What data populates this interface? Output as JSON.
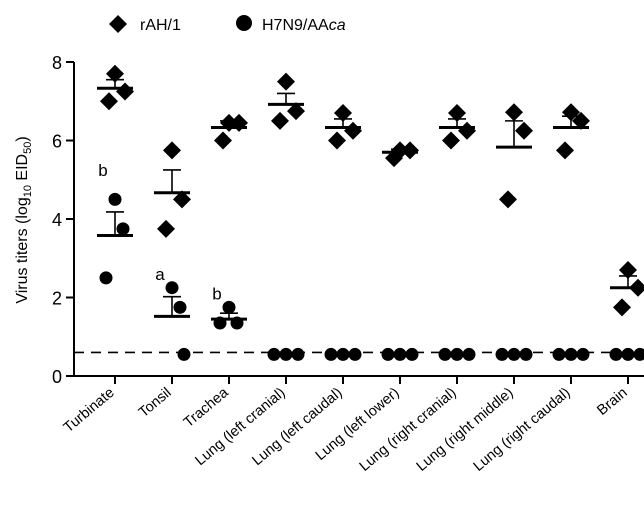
{
  "chart_data": {
    "type": "scatter",
    "ylabel": "Virus titers (log",
    "ylabel_sub": "10",
    "ylabel_tail": " EID",
    "ylabel_sub2": "50",
    "ylabel_end": ")",
    "ylim": [
      0,
      8
    ],
    "yticks": [
      "0",
      "2",
      "4",
      "6",
      "8"
    ],
    "detection_limit": 0.6,
    "categories": [
      "Turbinate",
      "Tonsil",
      "Trachea",
      "Lung (left cranial)",
      "Lung (left caudal)",
      "Lung (left lower)",
      "Lung (right cranial)",
      "Lung (right middle)",
      "Lung (right caudal)",
      "Brain"
    ],
    "legend": {
      "position": "top"
    },
    "series": [
      {
        "name": "rAH/1",
        "marker": "diamond",
        "points": [
          [
            7.7,
            7.25,
            7.0
          ],
          [
            5.75,
            4.5,
            3.75
          ],
          [
            6.45,
            6.45,
            6.0
          ],
          [
            7.5,
            6.75,
            6.5
          ],
          [
            6.7,
            6.25,
            6.0
          ],
          [
            5.75,
            5.75,
            5.55
          ],
          [
            6.7,
            6.25,
            6.0
          ],
          [
            6.72,
            6.25,
            4.5
          ],
          [
            6.72,
            6.5,
            5.75
          ],
          [
            2.7,
            2.25,
            1.75
          ]
        ],
        "mean": [
          7.33,
          4.67,
          6.33,
          6.92,
          6.33,
          5.7,
          6.33,
          5.83,
          6.33,
          2.25
        ],
        "sem_upper": [
          7.55,
          5.25,
          6.5,
          7.2,
          6.55,
          5.78,
          6.55,
          6.5,
          6.62,
          2.55
        ]
      },
      {
        "name": "H7N9/AAca",
        "name_plain": "H7N9/AA",
        "name_italic": "ca",
        "marker": "circle",
        "points": [
          [
            4.5,
            3.75,
            2.5
          ],
          [
            2.25,
            1.75,
            0.55
          ],
          [
            1.75,
            1.35,
            1.35
          ],
          [
            0.55,
            0.55,
            0.55
          ],
          [
            0.55,
            0.55,
            0.55
          ],
          [
            0.55,
            0.55,
            0.55
          ],
          [
            0.55,
            0.55,
            0.55
          ],
          [
            0.55,
            0.55,
            0.55
          ],
          [
            0.55,
            0.55,
            0.55
          ],
          [
            0.55,
            0.55,
            0.55
          ]
        ],
        "mean": [
          3.58,
          1.52,
          1.45,
          null,
          null,
          null,
          null,
          null,
          null,
          null
        ],
        "sem_upper": [
          4.18,
          2.02,
          1.6,
          null,
          null,
          null,
          null,
          null,
          null,
          null
        ]
      }
    ],
    "annotations": [
      {
        "text": "b",
        "category_index": 0,
        "y": 5.1
      },
      {
        "text": "a",
        "category_index": 1,
        "y": 2.45
      },
      {
        "text": "b",
        "category_index": 2,
        "y": 1.95
      }
    ]
  }
}
